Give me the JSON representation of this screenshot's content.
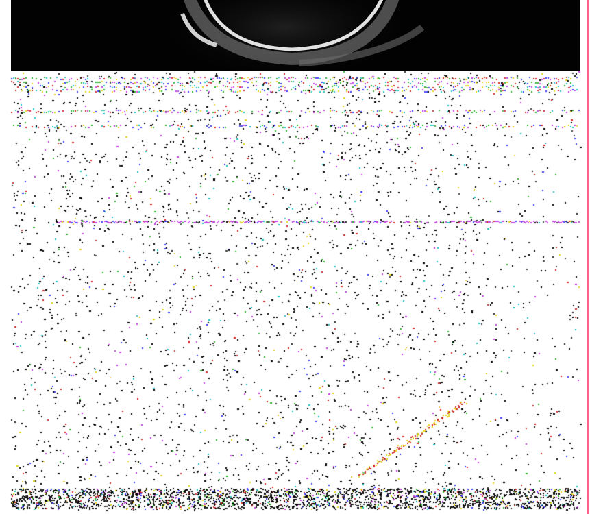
{
  "image": {
    "kind": "corrupted ultrasound capture",
    "colors": {
      "background": "#ffffff",
      "scan_band": "#020202",
      "arc": "#d8d8d8",
      "edge_line": "#ff3a6a",
      "artifact_stripe": "#c33fe0",
      "noise_palette": [
        "#000000",
        "#222222",
        "#444444",
        "#3a3aff",
        "#d02a2a",
        "#2fb12f",
        "#e0d21a",
        "#c33fe0",
        "#20c0c0"
      ]
    }
  }
}
